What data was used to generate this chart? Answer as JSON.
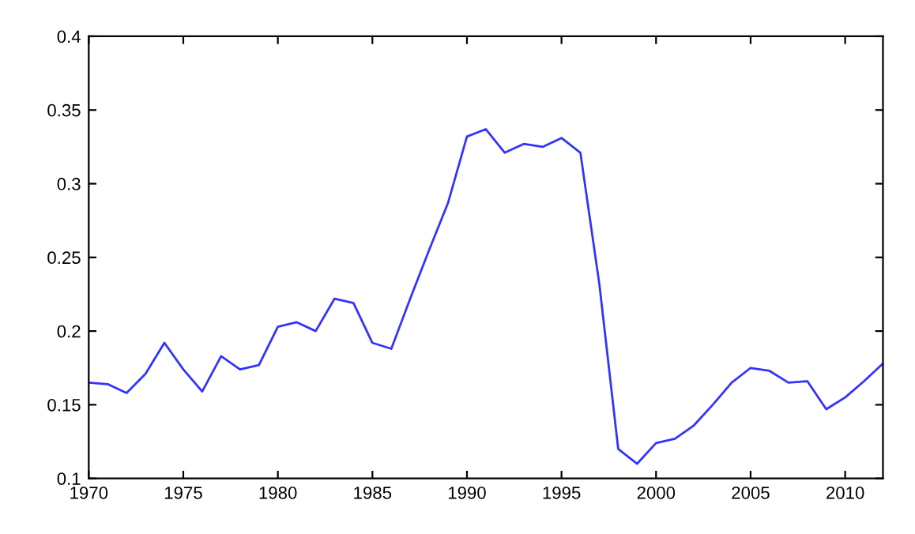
{
  "chart_data": {
    "type": "line",
    "x": [
      1970,
      1971,
      1972,
      1973,
      1974,
      1975,
      1976,
      1977,
      1978,
      1979,
      1980,
      1981,
      1982,
      1983,
      1984,
      1985,
      1986,
      1987,
      1988,
      1989,
      1990,
      1991,
      1992,
      1993,
      1994,
      1995,
      1996,
      1997,
      1998,
      1999,
      2000,
      2001,
      2002,
      2003,
      2004,
      2005,
      2006,
      2007,
      2008,
      2009,
      2010,
      2011,
      2012
    ],
    "series": [
      {
        "color": "#3333ff",
        "values": [
          0.165,
          0.164,
          0.158,
          0.171,
          0.192,
          0.174,
          0.159,
          0.183,
          0.174,
          0.177,
          0.203,
          0.206,
          0.2,
          0.222,
          0.219,
          0.192,
          0.188,
          0.222,
          0.255,
          0.287,
          0.332,
          0.337,
          0.321,
          0.327,
          0.325,
          0.331,
          0.321,
          0.232,
          0.12,
          0.11,
          0.124,
          0.127,
          0.136,
          0.15,
          0.165,
          0.175,
          0.173,
          0.165,
          0.166,
          0.147,
          0.155,
          0.166,
          0.178
        ]
      }
    ],
    "xlim": [
      1970,
      2012
    ],
    "xticks": [
      1970,
      1975,
      1980,
      1985,
      1990,
      1995,
      2000,
      2005,
      2010
    ],
    "ylim": [
      0.1,
      0.4
    ],
    "yticks": [
      0.1,
      0.15,
      0.2,
      0.25,
      0.3,
      0.35,
      0.4
    ],
    "grid": false
  }
}
